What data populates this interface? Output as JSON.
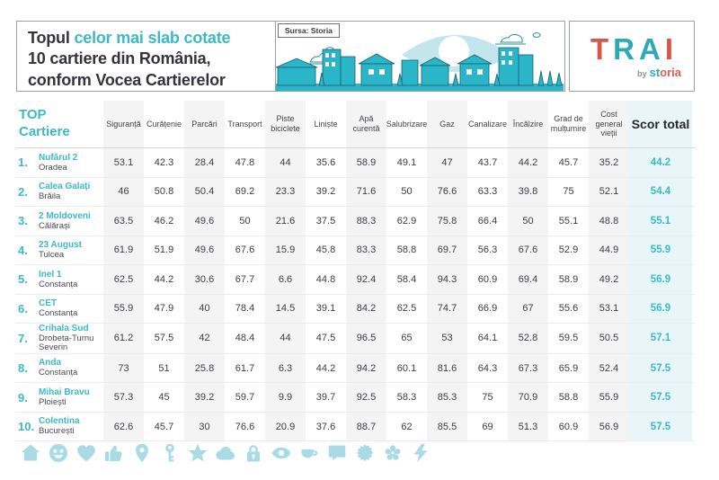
{
  "header": {
    "title": {
      "line1_dark": "Topul",
      "line1_teal": "celor mai slab cotate",
      "line2": "10 cartiere din România,",
      "line3": "conform Vocea Cartierelor"
    },
    "source_label": "Sursa: Storia",
    "logo": {
      "letters": [
        "T",
        "R",
        "A",
        "I"
      ],
      "by": "by",
      "brand_st": "st",
      "brand_oria": "oria"
    }
  },
  "chart_data": {
    "type": "table",
    "title": "Topul celor mai slab cotate 10 cartiere din România, conform Vocea Cartierelor",
    "corner_header": {
      "line1": "TOP",
      "line2": "Cartiere"
    },
    "columns": [
      "Siguranță",
      "Curățenie",
      "Parcări",
      "Transport",
      "Piste biciclete",
      "Liniște",
      "Apă curentă",
      "Salubrizare",
      "Gaz",
      "Canalizare",
      "Încălzire",
      "Grad de mulțumire",
      "Cost general vieții"
    ],
    "total_column": "Scor total",
    "rows": [
      {
        "rank": "1.",
        "name": "Nufărul 2",
        "city": "Oradea",
        "values": [
          53.1,
          42.3,
          28.4,
          47.8,
          44,
          35.6,
          58.9,
          49.1,
          47,
          43.7,
          44.2,
          45.7,
          35.2
        ],
        "total": 44.2
      },
      {
        "rank": "2.",
        "name": "Calea Galați",
        "city": "Brăila",
        "values": [
          46,
          50.8,
          50.4,
          69.2,
          23.3,
          39.2,
          71.6,
          50,
          76.6,
          63.3,
          39.8,
          75,
          52.1
        ],
        "total": 54.4
      },
      {
        "rank": "3.",
        "name": "2 Moldoveni",
        "city": "Călărași",
        "values": [
          63.5,
          46.2,
          49.6,
          50,
          21.6,
          37.5,
          88.3,
          62.9,
          75.8,
          66.4,
          50,
          55.1,
          48.8
        ],
        "total": 55.1
      },
      {
        "rank": "4.",
        "name": "23 August",
        "city": "Tulcea",
        "values": [
          61.9,
          51.9,
          49.6,
          67.6,
          15.9,
          45.8,
          83.3,
          58.8,
          69.7,
          56.3,
          67.6,
          52.9,
          44.9
        ],
        "total": 55.9
      },
      {
        "rank": "5.",
        "name": "Inel 1",
        "city": "Constanța",
        "values": [
          62.5,
          44.2,
          30.6,
          67.7,
          6.6,
          44.8,
          92.4,
          58.4,
          94.3,
          60.9,
          69.4,
          58.9,
          49.2
        ],
        "total": 56.9
      },
      {
        "rank": "6.",
        "name": "CET",
        "city": "Constanța",
        "values": [
          55.9,
          47.9,
          40,
          78.4,
          14.5,
          39.1,
          84.2,
          62.5,
          74.7,
          66.9,
          67,
          55.6,
          53.1
        ],
        "total": 56.9
      },
      {
        "rank": "7.",
        "name": "Crihala Sud",
        "city": "Drobeta-Turnu Severin",
        "values": [
          61.2,
          57.5,
          42,
          48.4,
          44,
          47.5,
          96.5,
          65,
          53,
          64.1,
          52.8,
          59.5,
          50.5
        ],
        "total": 57.1
      },
      {
        "rank": "8.",
        "name": "Anda",
        "city": "Constanța",
        "values": [
          73,
          51,
          25.8,
          61.7,
          6.3,
          44.2,
          94.2,
          60.1,
          81.6,
          64.3,
          67.3,
          65.9,
          52.4
        ],
        "total": 57.5
      },
      {
        "rank": "9.",
        "name": "Mihai Bravu",
        "city": "Ploiești",
        "values": [
          57.3,
          45,
          39.2,
          59.7,
          9.9,
          39.7,
          92.5,
          58.3,
          85.3,
          75,
          70.9,
          58.8,
          55.9
        ],
        "total": 57.5
      },
      {
        "rank": "10.",
        "name": "Colentina",
        "city": "București",
        "values": [
          62.6,
          45.7,
          30,
          76.6,
          20.9,
          37.6,
          88.7,
          62,
          85.5,
          69,
          51.3,
          60.9,
          56.9
        ],
        "total": 57.5
      }
    ]
  },
  "footer": {
    "icons": [
      "house-icon",
      "smiley-icon",
      "heart-icon",
      "thumbs-up-icon",
      "map-pin-icon",
      "key-icon",
      "star-icon",
      "cloud-icon",
      "lock-icon",
      "eye-icon",
      "cup-icon",
      "speech-bubble-icon",
      "badge-icon",
      "flower-icon",
      "lightning-icon"
    ]
  },
  "colors": {
    "accent_teal": "#3bbac5",
    "dark_text": "#32333b",
    "column_shade": "#f4f4f4",
    "score_column_bg": "#e9f6f9",
    "footer_icon_blue": "#a9dbe6",
    "logo_red": "#d9544a",
    "logo_teal": "#2fa9b8",
    "brand_orange": "#e0604c",
    "illustration_teal": "#2ab5c9"
  }
}
